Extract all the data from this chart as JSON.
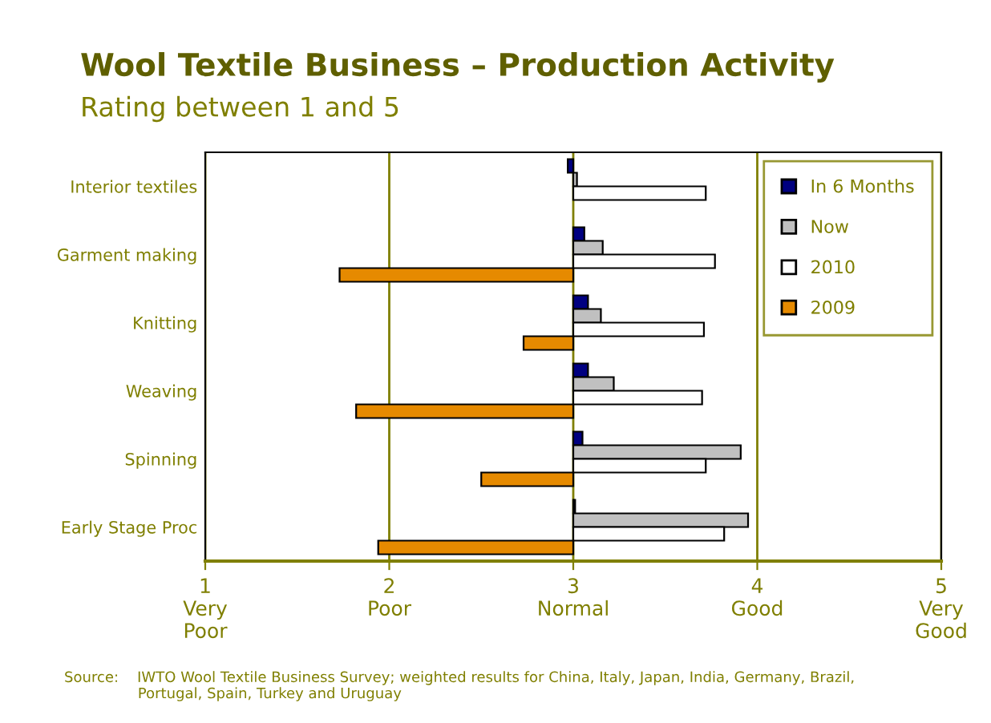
{
  "chart_data": {
    "type": "bar",
    "orientation": "horizontal",
    "title": "Wool Textile Business – Production Activity",
    "subtitle": "Rating between 1 and 5",
    "categories": [
      "Interior textiles",
      "Garment making",
      "Knitting",
      "Weaving",
      "Spinning",
      "Early Stage Proc"
    ],
    "series": [
      {
        "name": "In 6 Months",
        "color": "#000080",
        "base": [
          3,
          3,
          3,
          3,
          3,
          3
        ],
        "values": [
          -0.03,
          0.06,
          0.08,
          0.08,
          0.05,
          0.01
        ]
      },
      {
        "name": "Now",
        "color": "#c0c0c0",
        "base": [
          3,
          3,
          3,
          3,
          3,
          3
        ],
        "values": [
          0.02,
          0.16,
          0.15,
          0.22,
          0.91,
          0.95
        ]
      },
      {
        "name": "2010",
        "color": "#ffffff",
        "base": [
          3,
          3,
          3,
          3,
          3,
          3
        ],
        "values": [
          0.72,
          0.77,
          0.71,
          0.7,
          0.72,
          0.82
        ]
      },
      {
        "name": "2009",
        "color": "#e68a00",
        "base": [
          null,
          3,
          3,
          3,
          3,
          3
        ],
        "values": [
          null,
          -1.27,
          -0.27,
          -1.18,
          -0.5,
          -1.06
        ]
      }
    ],
    "xlim": [
      1,
      5
    ],
    "xticks": [
      {
        "value": 1,
        "label": "1\nVery\nPoor"
      },
      {
        "value": 2,
        "label": "2\nPoor"
      },
      {
        "value": 3,
        "label": "3\nNormal"
      },
      {
        "value": 4,
        "label": "4\nGood"
      },
      {
        "value": 5,
        "label": "5\nVery\nGood"
      }
    ],
    "grid": "x",
    "legend": "top right",
    "annotations": [
      "Source:    IWTO Wool Textile Business Survey; weighted results for China, Italy, Japan, India, Germany, Brazil,\n                Portugal, Spain, Turkey and Uruguay"
    ]
  }
}
